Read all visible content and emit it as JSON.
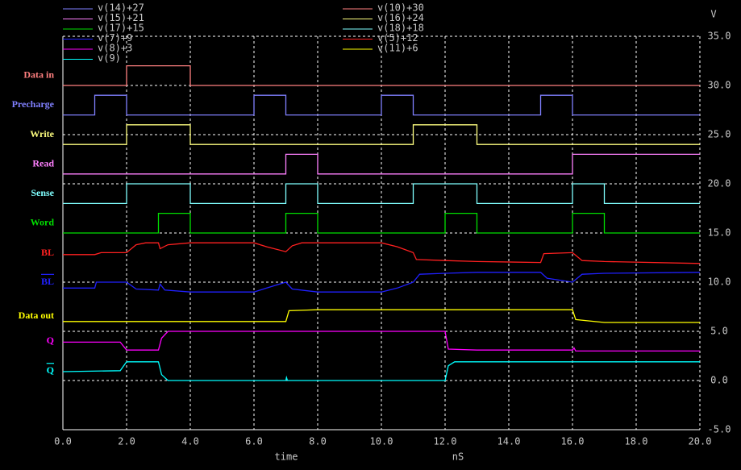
{
  "chart_data": {
    "type": "line",
    "xlabel": "time",
    "xunit": "nS",
    "ylabel": "V",
    "xlim": [
      0,
      20
    ],
    "ylim": [
      -5,
      35
    ],
    "grid": true,
    "xticks": [
      {
        "value": 0,
        "label": "0.0"
      },
      {
        "value": 2,
        "label": "2.0"
      },
      {
        "value": 4,
        "label": "4.0"
      },
      {
        "value": 6,
        "label": "6.0"
      },
      {
        "value": 8,
        "label": "8.0"
      },
      {
        "value": 10,
        "label": "10.0"
      },
      {
        "value": 12,
        "label": "12.0"
      },
      {
        "value": 14,
        "label": "14.0"
      },
      {
        "value": 16,
        "label": "16.0"
      },
      {
        "value": 18,
        "label": "18.0"
      },
      {
        "value": 20,
        "label": "20.0"
      }
    ],
    "yticks": [
      {
        "value": 35,
        "label": "35.0"
      },
      {
        "value": 30,
        "label": "30.0"
      },
      {
        "value": 25,
        "label": "25.0"
      },
      {
        "value": 20,
        "label": "20.0"
      },
      {
        "value": 15,
        "label": "15.0"
      },
      {
        "value": 10,
        "label": "10.0"
      },
      {
        "value": 5,
        "label": "5.0"
      },
      {
        "value": 0,
        "label": "0.0"
      },
      {
        "value": -5,
        "label": "-5.0"
      }
    ],
    "series": [
      {
        "name": "v(14)+27",
        "signal": "Precharge",
        "color": "#8080ff",
        "x": [
          0,
          1,
          1,
          2,
          2,
          6,
          6,
          7,
          7,
          10,
          10,
          11,
          11,
          15,
          15,
          16,
          16,
          20
        ],
        "values": [
          27,
          27,
          29,
          29,
          27,
          27,
          29,
          29,
          27,
          27,
          29,
          29,
          27,
          27,
          29,
          29,
          27,
          27
        ]
      },
      {
        "name": "v(10)+30",
        "signal": "Data in",
        "color": "#ff8080",
        "x": [
          0,
          2,
          2,
          4,
          4,
          20
        ],
        "values": [
          30,
          30,
          32,
          32,
          30,
          30
        ]
      },
      {
        "name": "v(15)+21",
        "signal": "Read",
        "color": "#ff80ff",
        "x": [
          0,
          7,
          7,
          8,
          8,
          16,
          16,
          20
        ],
        "values": [
          21,
          21,
          23,
          23,
          21,
          21,
          23,
          23
        ]
      },
      {
        "name": "v(16)+24",
        "signal": "Write",
        "color": "#ffff80",
        "x": [
          0,
          2,
          2,
          4,
          4,
          11,
          11,
          13,
          13,
          20
        ],
        "values": [
          24,
          24,
          26,
          26,
          24,
          24,
          26,
          26,
          24,
          24
        ]
      },
      {
        "name": "v(17)+15",
        "signal": "Word",
        "color": "#00e000",
        "x": [
          0,
          3,
          3,
          4,
          4,
          7,
          7,
          8,
          8,
          12,
          12,
          13,
          13,
          16,
          16,
          17,
          17,
          20
        ],
        "values": [
          15,
          15,
          17,
          17,
          15,
          15,
          17,
          17,
          15,
          15,
          17,
          17,
          15,
          15,
          17,
          17,
          15,
          15
        ]
      },
      {
        "name": "v(18)+18",
        "signal": "Sense",
        "color": "#80ffff",
        "x": [
          0,
          2,
          2,
          4,
          4,
          7,
          7,
          8,
          8,
          11,
          11,
          13,
          13,
          16,
          16,
          17,
          17,
          20
        ],
        "values": [
          18,
          18,
          20,
          20,
          18,
          18,
          20,
          20,
          18,
          18,
          20,
          20,
          18,
          18,
          20,
          20,
          18,
          18
        ]
      },
      {
        "name": "v(7)+9",
        "signal": "BL",
        "overline": true,
        "color": "#2020ff",
        "x": [
          0,
          1,
          1.05,
          2,
          2.3,
          3,
          3.05,
          3.2,
          4,
          6,
          6.4,
          7,
          7.2,
          8,
          10,
          10.5,
          11,
          11.2,
          12,
          13,
          15,
          15.2,
          16,
          16.3,
          17,
          20
        ],
        "values": [
          9.4,
          9.4,
          10,
          10,
          9.3,
          9.2,
          9.8,
          9.2,
          9,
          9,
          9.4,
          10,
          9.3,
          9,
          9,
          9.4,
          10,
          10.8,
          10.9,
          11,
          11,
          10.4,
          10,
          10.8,
          10.9,
          11
        ]
      },
      {
        "name": "v(5)+12",
        "signal": "BL",
        "color": "#ff2020",
        "x": [
          0,
          1,
          1.2,
          2,
          2.3,
          2.6,
          3,
          3.05,
          3.3,
          4,
          6,
          6.4,
          7,
          7.2,
          7.5,
          10,
          10.5,
          11,
          11.1,
          12,
          13,
          15,
          15.1,
          16,
          16.3,
          17,
          20
        ],
        "values": [
          12.8,
          12.8,
          13,
          13,
          13.8,
          14,
          14,
          13.4,
          13.8,
          14,
          14,
          13.6,
          13.1,
          13.7,
          14,
          14,
          13.6,
          13,
          12.3,
          12.2,
          12.1,
          12,
          12.9,
          13,
          12.2,
          12.1,
          11.9
        ]
      },
      {
        "name": "v(8)+3",
        "signal": "Q",
        "color": "#ff00ff",
        "x": [
          0,
          1.8,
          2,
          3,
          3.1,
          3.3,
          12,
          12.1,
          13,
          16,
          16.05,
          16.1,
          20
        ],
        "values": [
          3.9,
          3.9,
          3.1,
          3.1,
          4.3,
          5,
          5,
          3.2,
          3.1,
          3.1,
          3.3,
          3,
          3
        ]
      },
      {
        "name": "v(11)+6",
        "signal": "Data out",
        "color": "#ffff00",
        "x": [
          0,
          7,
          7.1,
          8,
          16,
          16.1,
          17,
          20
        ],
        "values": [
          6,
          6,
          7.1,
          7.2,
          7.2,
          6.2,
          5.9,
          5.9
        ]
      },
      {
        "name": "v(9)",
        "signal": "Q",
        "overline": true,
        "color": "#00ffff",
        "x": [
          0,
          1.8,
          2,
          3,
          3.1,
          3.3,
          7,
          7.02,
          7.05,
          12,
          12.1,
          12.3,
          20
        ],
        "values": [
          0.9,
          1,
          1.9,
          1.9,
          0.6,
          0,
          0,
          0.3,
          0,
          0,
          1.5,
          1.9,
          1.9
        ]
      }
    ]
  }
}
